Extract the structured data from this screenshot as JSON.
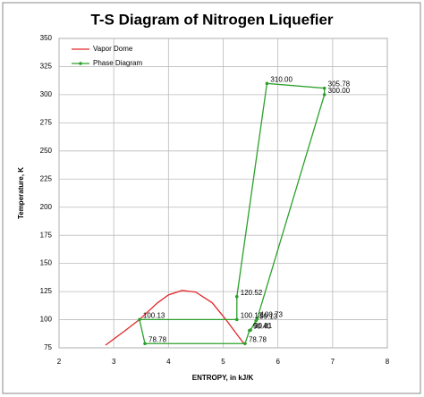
{
  "chart_data": {
    "type": "line",
    "title": "T-S Diagram of Nitrogen Liquefier",
    "x_label": "ENTROPY, in kJ/K",
    "y_label": "Temperature, K",
    "xlim": [
      2,
      8
    ],
    "xticks": [
      2,
      3,
      4,
      5,
      6,
      7,
      8
    ],
    "ylim": [
      75,
      350
    ],
    "yticks": [
      75,
      100,
      125,
      150,
      175,
      200,
      225,
      250,
      275,
      300,
      325,
      350
    ],
    "grid": true,
    "legend": "upper-left",
    "series": [
      {
        "name": "Vapor Dome",
        "color": "#e0282a",
        "markers": false,
        "x": [
          2.85,
          3.2,
          3.47,
          3.8,
          4.0,
          4.25,
          4.5,
          4.8,
          5.05,
          5.25,
          5.4
        ],
        "values": [
          77.4,
          90,
          100.1,
          115,
          122,
          126,
          124.5,
          115,
          100.1,
          87,
          77.4
        ]
      },
      {
        "name": "Phase Diagram",
        "color": "#2ca02c",
        "markers": true,
        "x": [
          5.48,
          5.4,
          3.57,
          3.47,
          5.25,
          5.25,
          5.8,
          6.85,
          6.85,
          5.62,
          5.6,
          5.5
        ],
        "values": [
          90.4,
          78.78,
          78.78,
          100.13,
          100.13,
          120.52,
          310,
          305.78,
          300,
          100.73,
          99.13,
          90.81
        ],
        "value_labels": [
          "90.40",
          "78.78",
          "78.78",
          "100.13",
          "100.13",
          "120.52",
          "310.00",
          "305.78",
          "300.00",
          "100.73",
          "99.13",
          "90.81"
        ]
      }
    ]
  }
}
